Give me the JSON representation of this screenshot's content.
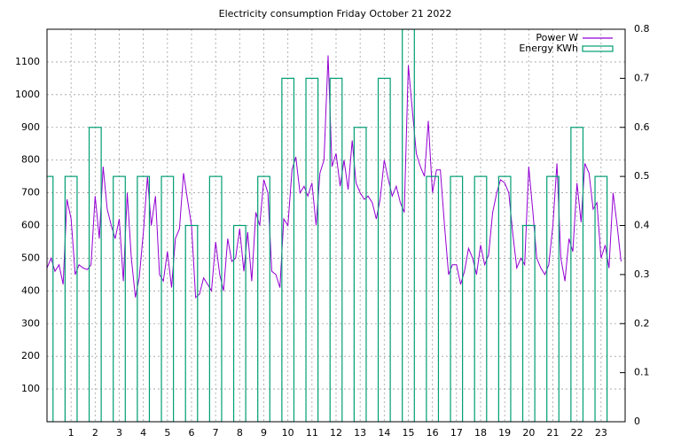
{
  "chart_data": {
    "type": "line",
    "title": "Electricity consumption Friday October 21 2022",
    "xlim": [
      0,
      24
    ],
    "xticks": [
      1,
      2,
      3,
      4,
      5,
      6,
      7,
      8,
      9,
      10,
      11,
      12,
      13,
      14,
      15,
      16,
      17,
      18,
      19,
      20,
      21,
      22,
      23
    ],
    "ylim": [
      0,
      1200
    ],
    "yticks": [
      100,
      200,
      300,
      400,
      500,
      600,
      700,
      800,
      900,
      1000,
      1100
    ],
    "y2lim": [
      0,
      0.8
    ],
    "y2ticks": [
      0,
      0.1,
      0.2,
      0.3,
      0.4,
      0.5,
      0.6,
      0.7,
      0.8
    ],
    "grid": true,
    "legend": "top-right",
    "series": [
      {
        "name": "Power W",
        "color": "#9400d3",
        "x": [
          0,
          0.17,
          0.33,
          0.5,
          0.67,
          0.83,
          1,
          1.17,
          1.33,
          1.5,
          1.67,
          1.83,
          2,
          2.17,
          2.33,
          2.5,
          2.67,
          2.83,
          3,
          3.17,
          3.33,
          3.5,
          3.67,
          3.83,
          4,
          4.17,
          4.33,
          4.5,
          4.67,
          4.83,
          5,
          5.17,
          5.33,
          5.5,
          5.67,
          5.83,
          6,
          6.17,
          6.33,
          6.5,
          6.67,
          6.83,
          7,
          7.17,
          7.33,
          7.5,
          7.67,
          7.83,
          8,
          8.17,
          8.33,
          8.5,
          8.67,
          8.83,
          9,
          9.17,
          9.33,
          9.5,
          9.67,
          9.83,
          10,
          10.17,
          10.33,
          10.5,
          10.67,
          10.83,
          11,
          11.17,
          11.33,
          11.5,
          11.67,
          11.83,
          12,
          12.17,
          12.33,
          12.5,
          12.67,
          12.83,
          13,
          13.17,
          13.33,
          13.5,
          13.67,
          13.83,
          14,
          14.17,
          14.33,
          14.5,
          14.67,
          14.83,
          15,
          15.17,
          15.33,
          15.5,
          15.67,
          15.83,
          16,
          16.17,
          16.33,
          16.5,
          16.67,
          16.83,
          17,
          17.17,
          17.33,
          17.5,
          17.67,
          17.83,
          18,
          18.17,
          18.33,
          18.5,
          18.67,
          18.83,
          19,
          19.17,
          19.33,
          19.5,
          19.67,
          19.83,
          20,
          20.17,
          20.33,
          20.5,
          20.67,
          20.83,
          21,
          21.17,
          21.33,
          21.5,
          21.67,
          21.83,
          22,
          22.17,
          22.33,
          22.5,
          22.67,
          22.83,
          23,
          23.17,
          23.33,
          23.5,
          23.67,
          23.83
        ],
        "values": [
          470,
          500,
          460,
          480,
          420,
          680,
          620,
          450,
          480,
          470,
          465,
          480,
          690,
          560,
          780,
          650,
          600,
          560,
          620,
          430,
          700,
          500,
          380,
          440,
          580,
          750,
          600,
          690,
          450,
          430,
          520,
          410,
          560,
          590,
          760,
          680,
          600,
          380,
          390,
          440,
          420,
          400,
          550,
          450,
          400,
          560,
          490,
          500,
          590,
          460,
          580,
          430,
          640,
          600,
          740,
          700,
          460,
          450,
          410,
          620,
          600,
          770,
          810,
          700,
          720,
          690,
          730,
          600,
          760,
          800,
          1120,
          780,
          820,
          720,
          800,
          710,
          860,
          730,
          700,
          680,
          690,
          670,
          620,
          680,
          800,
          740,
          690,
          720,
          670,
          640,
          1090,
          950,
          820,
          780,
          750,
          920,
          700,
          770,
          770,
          600,
          450,
          480,
          480,
          420,
          460,
          530,
          500,
          450,
          540,
          480,
          510,
          640,
          700,
          740,
          730,
          700,
          580,
          470,
          500,
          480,
          780,
          640,
          500,
          470,
          450,
          480,
          600,
          790,
          500,
          430,
          560,
          520,
          730,
          610,
          790,
          760,
          650,
          670,
          500,
          540,
          470,
          700,
          600,
          490
        ]
      },
      {
        "name": "Energy KWh",
        "color": "#009e73",
        "axis": "y2",
        "x": [
          0,
          1,
          2,
          3,
          4,
          5,
          6,
          7,
          8,
          9,
          10,
          11,
          12,
          13,
          14,
          15,
          16,
          17,
          18,
          19,
          20,
          21,
          22,
          23
        ],
        "values": [
          0.5,
          0.5,
          0.6,
          0.5,
          0.5,
          0.5,
          0.4,
          0.5,
          0.4,
          0.5,
          0.7,
          0.7,
          0.7,
          0.6,
          0.7,
          0.8,
          0.5,
          0.5,
          0.5,
          0.5,
          0.4,
          0.5,
          0.6,
          0.5
        ]
      }
    ]
  }
}
